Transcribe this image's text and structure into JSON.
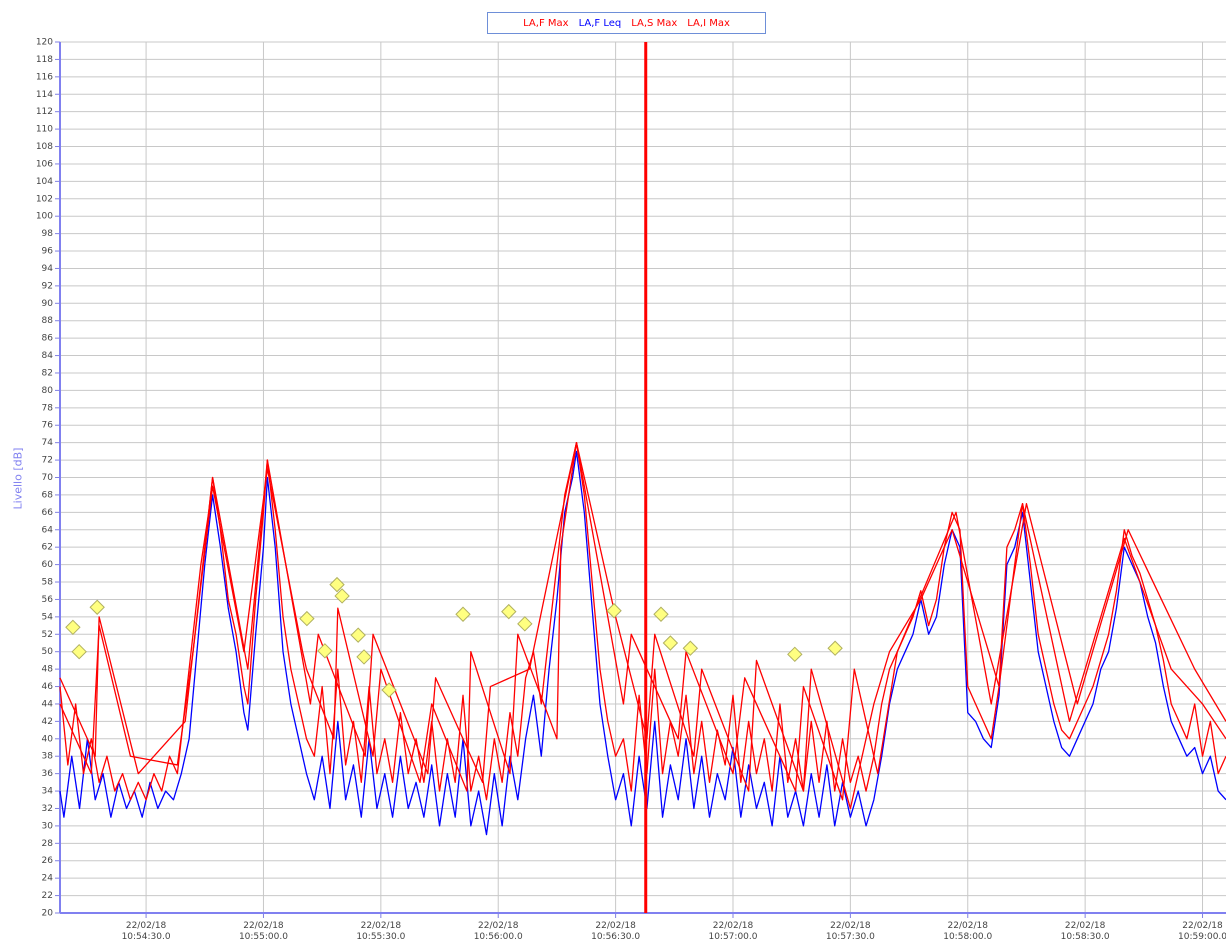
{
  "chart_data": {
    "type": "line",
    "y_label": "Livello [dB]",
    "xlim": [
      39248,
      39546
    ],
    "ylim": [
      20,
      120
    ],
    "yticks": [
      20,
      22,
      24,
      26,
      28,
      30,
      32,
      34,
      36,
      38,
      40,
      42,
      44,
      46,
      48,
      50,
      52,
      54,
      56,
      58,
      60,
      62,
      64,
      66,
      68,
      70,
      72,
      74,
      76,
      78,
      80,
      82,
      84,
      86,
      88,
      90,
      92,
      94,
      96,
      98,
      100,
      102,
      104,
      106,
      108,
      110,
      112,
      114,
      116,
      118,
      120
    ],
    "xticks": [
      {
        "value": 39270,
        "label": "22/02/18\n10:54:30.0"
      },
      {
        "value": 39300,
        "label": "22/02/18\n10:55:00.0"
      },
      {
        "value": 39330,
        "label": "22/02/18\n10:55:30.0"
      },
      {
        "value": 39360,
        "label": "22/02/18\n10:56:00.0"
      },
      {
        "value": 39390,
        "label": "22/02/18\n10:56:30.0"
      },
      {
        "value": 39420,
        "label": "22/02/18\n10:57:00.0"
      },
      {
        "value": 39450,
        "label": "22/02/18\n10:57:30.0"
      },
      {
        "value": 39480,
        "label": "22/02/18\n10:58:00.0"
      },
      {
        "value": 39510,
        "label": "22/02/18\n10:58:30.0"
      },
      {
        "value": 39540,
        "label": "22/02/18\n10:59:00.0"
      }
    ],
    "grid": true,
    "cursor_x": 39397.7,
    "cursor_color": "#ff0000",
    "series": [
      {
        "name": "LA,F Max",
        "color": "#ff0000",
        "x": [
          39248,
          39250,
          39252,
          39254,
          39256,
          39258,
          39260,
          39262,
          39264,
          39266,
          39268,
          39270,
          39272,
          39274,
          39276,
          39278,
          39280,
          39282,
          39284,
          39286,
          39287,
          39289,
          39291,
          39293,
          39295,
          39296,
          39298,
          39300,
          39301,
          39303,
          39305,
          39307,
          39309,
          39311,
          39313,
          39315,
          39317,
          39319,
          39321,
          39323,
          39325,
          39327,
          39329,
          39331,
          39333,
          39335,
          39337,
          39339,
          39341,
          39343,
          39345,
          39347,
          39349,
          39351,
          39353,
          39355,
          39357,
          39359,
          39361,
          39363,
          39365,
          39367,
          39369,
          39371,
          39373,
          39375,
          39377,
          39379,
          39380,
          39382,
          39384,
          39386,
          39388,
          39390,
          39392,
          39394,
          39396,
          39398,
          39400,
          39402,
          39404,
          39406,
          39408,
          39410,
          39412,
          39414,
          39416,
          39418,
          39420,
          39422,
          39424,
          39426,
          39428,
          39430,
          39432,
          39434,
          39436,
          39438,
          39440,
          39442,
          39444,
          39446,
          39448,
          39450,
          39452,
          39454,
          39456,
          39458,
          39460,
          39462,
          39464,
          39466,
          39468,
          39470,
          39472,
          39474,
          39476,
          39478,
          39480,
          39482,
          39484,
          39486,
          39488,
          39490,
          39492,
          39494,
          39496,
          39498,
          39500,
          39502,
          39504,
          39506,
          39508,
          39510,
          39512,
          39514,
          39516,
          39518,
          39520,
          39522,
          39524,
          39526,
          39528,
          39530,
          39532,
          39534,
          39536,
          39538,
          39540,
          39542,
          39544,
          39546
        ],
        "values": [
          46,
          37,
          44,
          36,
          40,
          35,
          38,
          34,
          36,
          33,
          35,
          33,
          36,
          34,
          38,
          36,
          44,
          52,
          60,
          66,
          70,
          64,
          56,
          52,
          46,
          44,
          56,
          66,
          72,
          64,
          54,
          48,
          44,
          40,
          38,
          46,
          36,
          48,
          37,
          42,
          35,
          46,
          36,
          40,
          35,
          43,
          36,
          40,
          35,
          42,
          34,
          40,
          35,
          45,
          34,
          38,
          33,
          40,
          35,
          43,
          38,
          47,
          50,
          44,
          52,
          60,
          68,
          72,
          74,
          68,
          58,
          48,
          42,
          38,
          40,
          34,
          45,
          36,
          48,
          36,
          42,
          38,
          45,
          36,
          42,
          35,
          41,
          37,
          45,
          35,
          42,
          36,
          40,
          34,
          44,
          35,
          40,
          34,
          42,
          35,
          42,
          34,
          40,
          35,
          38,
          34,
          38,
          44,
          48,
          50,
          52,
          54,
          57,
          53,
          56,
          62,
          66,
          64,
          46,
          44,
          42,
          40,
          46,
          62,
          64,
          67,
          60,
          52,
          48,
          44,
          41,
          40,
          42,
          44,
          46,
          49,
          52,
          57,
          64,
          61,
          59,
          56,
          53,
          49,
          44,
          42,
          40,
          44,
          38,
          42,
          36,
          38
        ]
      },
      {
        "name": "LA,F Leq",
        "color": "#0000ff",
        "x": [
          39248,
          39249,
          39251,
          39253,
          39255,
          39257,
          39259,
          39261,
          39263,
          39265,
          39267,
          39269,
          39271,
          39273,
          39275,
          39277,
          39279,
          39281,
          39283,
          39285,
          39287,
          39289,
          39291,
          39293,
          39295,
          39296,
          39298,
          39300,
          39301,
          39303,
          39305,
          39307,
          39309,
          39311,
          39313,
          39315,
          39317,
          39319,
          39321,
          39323,
          39325,
          39327,
          39329,
          39331,
          39333,
          39335,
          39337,
          39339,
          39341,
          39343,
          39345,
          39347,
          39349,
          39351,
          39353,
          39355,
          39357,
          39359,
          39361,
          39363,
          39365,
          39367,
          39369,
          39371,
          39373,
          39375,
          39377,
          39379,
          39380,
          39382,
          39384,
          39386,
          39388,
          39390,
          39392,
          39394,
          39396,
          39398,
          39400,
          39402,
          39404,
          39406,
          39408,
          39410,
          39412,
          39414,
          39416,
          39418,
          39420,
          39422,
          39424,
          39426,
          39428,
          39430,
          39432,
          39434,
          39436,
          39438,
          39440,
          39442,
          39444,
          39446,
          39448,
          39450,
          39452,
          39454,
          39456,
          39458,
          39460,
          39462,
          39464,
          39466,
          39468,
          39470,
          39472,
          39474,
          39476,
          39478,
          39480,
          39482,
          39484,
          39486,
          39488,
          39490,
          39492,
          39494,
          39496,
          39498,
          39500,
          39502,
          39504,
          39506,
          39508,
          39510,
          39512,
          39514,
          39516,
          39518,
          39520,
          39522,
          39524,
          39526,
          39528,
          39530,
          39532,
          39534,
          39536,
          39538,
          39540,
          39542,
          39544,
          39546
        ],
        "values": [
          34,
          31,
          38,
          32,
          40,
          33,
          36,
          31,
          35,
          32,
          34,
          31,
          35,
          32,
          34,
          33,
          36,
          40,
          50,
          60,
          68,
          62,
          55,
          50,
          43,
          41,
          52,
          62,
          70,
          62,
          50,
          44,
          40,
          36,
          33,
          38,
          32,
          42,
          33,
          37,
          31,
          40,
          32,
          36,
          31,
          38,
          32,
          35,
          31,
          37,
          30,
          36,
          31,
          40,
          30,
          34,
          29,
          36,
          30,
          38,
          33,
          40,
          45,
          38,
          48,
          56,
          66,
          70,
          73,
          66,
          55,
          44,
          38,
          33,
          36,
          30,
          38,
          32,
          42,
          31,
          37,
          33,
          40,
          32,
          38,
          31,
          36,
          33,
          39,
          31,
          37,
          32,
          35,
          30,
          38,
          31,
          34,
          30,
          36,
          31,
          37,
          30,
          35,
          31,
          34,
          30,
          33,
          38,
          44,
          48,
          50,
          52,
          56,
          52,
          54,
          60,
          64,
          62,
          43,
          42,
          40,
          39,
          45,
          60,
          62,
          66,
          58,
          50,
          46,
          42,
          39,
          38,
          40,
          42,
          44,
          48,
          50,
          55,
          62,
          60,
          58,
          54,
          51,
          46,
          42,
          40,
          38,
          39,
          36,
          38,
          34,
          33
        ]
      },
      {
        "name": "LA,S Max",
        "color": "#ff0000",
        "x": [
          39248,
          39256,
          39258,
          39266,
          39278,
          39282,
          39287,
          39295,
          39301,
          39310,
          39311,
          39318,
          39319,
          39328,
          39330,
          39340,
          39343,
          39352,
          39353,
          39363,
          39365,
          39375,
          39376,
          39380,
          39390,
          39398,
          39400,
          39410,
          39412,
          39424,
          39426,
          39438,
          39440,
          39450,
          39456,
          39460,
          39468,
          39476,
          39488,
          39494,
          39506,
          39520,
          39532,
          39540,
          39546
        ],
        "values": [
          44,
          36,
          53,
          38,
          37,
          50,
          69,
          50,
          71,
          50,
          48,
          40,
          55,
          38,
          48,
          35,
          44,
          34,
          50,
          36,
          52,
          40,
          62,
          74,
          54,
          40,
          52,
          38,
          48,
          34,
          49,
          34,
          48,
          32,
          44,
          50,
          56,
          64,
          46,
          67,
          42,
          63,
          48,
          44,
          40
        ]
      },
      {
        "name": "LA,I Max",
        "color": "#ff0000",
        "x": [
          39248,
          39257,
          39258,
          39268,
          39280,
          39287,
          39296,
          39301,
          39312,
          39314,
          39326,
          39328,
          39342,
          39344,
          39356,
          39358,
          39368,
          39380,
          39392,
          39394,
          39406,
          39408,
          39420,
          39423,
          39436,
          39438,
          39448,
          39451,
          39457,
          39462,
          39477,
          39486,
          39495,
          39508,
          39521,
          39538,
          39546
        ],
        "values": [
          47,
          38,
          54,
          36,
          42,
          70,
          48,
          72,
          44,
          52,
          38,
          52,
          36,
          47,
          35,
          46,
          48,
          74,
          44,
          52,
          40,
          50,
          36,
          47,
          34,
          46,
          33,
          48,
          36,
          50,
          66,
          44,
          67,
          44,
          64,
          48,
          42
        ]
      }
    ],
    "markers": {
      "color": "#ffff80",
      "x": [
        39251.3,
        39252.9,
        39257.5,
        39311.1,
        39315.7,
        39318.8,
        39320.1,
        39324.2,
        39325.7,
        39332.1,
        39351.0,
        39362.7,
        39366.8,
        39389.6,
        39401.6,
        39404.0,
        39409.1,
        39435.8,
        39446.1
      ],
      "values": [
        52.8,
        50.0,
        55.1,
        53.8,
        50.1,
        57.7,
        56.4,
        51.9,
        49.4,
        45.6,
        54.3,
        54.6,
        53.2,
        54.7,
        54.3,
        51.0,
        50.4,
        49.7,
        50.4
      ]
    }
  }
}
